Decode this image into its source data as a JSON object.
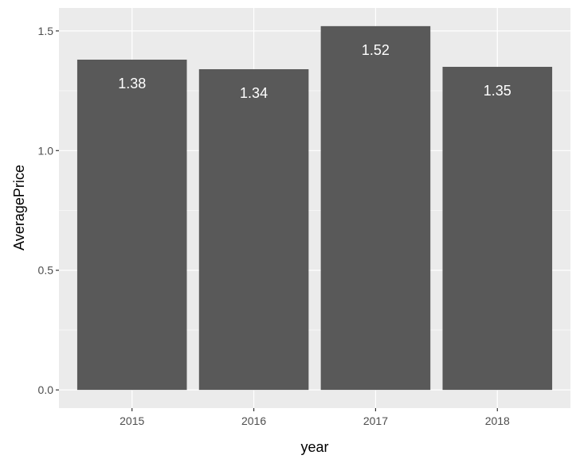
{
  "chart_data": {
    "type": "bar",
    "categories": [
      "2015",
      "2016",
      "2017",
      "2018"
    ],
    "values": [
      1.38,
      1.34,
      1.52,
      1.35
    ],
    "data_labels": [
      "1.38",
      "1.34",
      "1.52",
      "1.35"
    ],
    "title": "",
    "xlabel": "year",
    "ylabel": "AveragePrice",
    "ylim": [
      -0.076,
      1.596
    ],
    "yticks": [
      0.0,
      0.5,
      1.0,
      1.5
    ],
    "ytick_labels": [
      "0.0",
      "0.5",
      "1.0",
      "1.5"
    ],
    "grid": true,
    "colors": {
      "bar": "#595959",
      "panel": "#ebebeb",
      "grid": "#ffffff",
      "label": "#ffffff"
    }
  }
}
